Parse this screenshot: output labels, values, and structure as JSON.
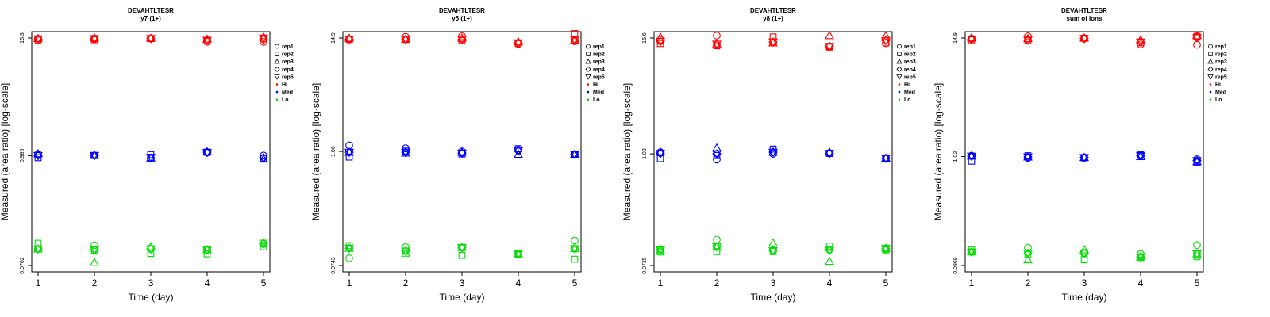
{
  "chart_data": [
    {
      "type": "scatter",
      "title": "DEVAHTLTESR",
      "subtitle": "y7 (1+)",
      "xlabel": "Time (day)",
      "ylabel": "Measured (area ratio) [log-scale]",
      "x_ticks": [
        "1",
        "2",
        "3",
        "4",
        "5"
      ],
      "y_ticks": [
        {
          "value": 0.0762,
          "label": "0.0762"
        },
        {
          "value": 0.986,
          "label": "0.986"
        },
        {
          "value": 15.3,
          "label": "15.3"
        }
      ],
      "ylim": [
        0.0762,
        15.3
      ],
      "ylog": true,
      "series": [
        {
          "group": "Hi",
          "rep": "rep1",
          "values": [
            15.0,
            15.0,
            15.1,
            14.0,
            14.0
          ]
        },
        {
          "group": "Hi",
          "rep": "rep2",
          "values": [
            14.6,
            14.7,
            15.1,
            14.4,
            15.0
          ]
        },
        {
          "group": "Hi",
          "rep": "rep3",
          "values": [
            15.1,
            15.3,
            15.2,
            14.9,
            15.6
          ]
        },
        {
          "group": "Hi",
          "rep": "rep4",
          "values": [
            15.0,
            15.0,
            15.1,
            14.6,
            14.8
          ]
        },
        {
          "group": "Hi",
          "rep": "rep5",
          "values": [
            15.0,
            15.1,
            15.1,
            14.5,
            15.3
          ]
        },
        {
          "group": "Med",
          "rep": "rep1",
          "values": [
            1.02,
            0.99,
            0.93,
            1.06,
            0.99
          ]
        },
        {
          "group": "Med",
          "rep": "rep2",
          "values": [
            0.94,
            0.99,
            1.01,
            1.07,
            0.93
          ]
        },
        {
          "group": "Med",
          "rep": "rep3",
          "values": [
            1.03,
            0.99,
            0.93,
            1.08,
            0.91
          ]
        },
        {
          "group": "Med",
          "rep": "rep4",
          "values": [
            0.99,
            0.99,
            0.93,
            1.07,
            0.94
          ]
        },
        {
          "group": "Med",
          "rep": "rep5",
          "values": [
            0.99,
            0.99,
            0.95,
            1.06,
            0.93
          ]
        },
        {
          "group": "Lo",
          "rep": "rep1",
          "values": [
            0.112,
            0.122,
            0.112,
            0.111,
            0.125
          ]
        },
        {
          "group": "Lo",
          "rep": "rep2",
          "values": [
            0.128,
            0.109,
            0.101,
            0.1,
            0.118
          ]
        },
        {
          "group": "Lo",
          "rep": "rep3",
          "values": [
            0.112,
            0.082,
            0.118,
            0.11,
            0.13
          ]
        },
        {
          "group": "Lo",
          "rep": "rep4",
          "values": [
            0.112,
            0.11,
            0.112,
            0.109,
            0.127
          ]
        },
        {
          "group": "Lo",
          "rep": "rep5",
          "values": [
            0.112,
            0.11,
            0.112,
            0.109,
            0.128
          ]
        }
      ]
    },
    {
      "type": "scatter",
      "title": "DEVAHTLTESR",
      "subtitle": "y5 (1+)",
      "xlabel": "Time (day)",
      "ylabel": "Measured (area ratio) [log-scale]",
      "x_ticks": [
        "1",
        "2",
        "3",
        "4",
        "5"
      ],
      "y_ticks": [
        {
          "value": 0.0743,
          "label": "0.0743"
        },
        {
          "value": 1.06,
          "label": "1.06"
        },
        {
          "value": 14.9,
          "label": "14.9"
        }
      ],
      "ylim": [
        0.0743,
        14.9
      ],
      "ylog": true,
      "series": [
        {
          "group": "Hi",
          "rep": "rep1",
          "values": [
            14.5,
            15.3,
            15.5,
            13.0,
            13.8
          ]
        },
        {
          "group": "Hi",
          "rep": "rep2",
          "values": [
            14.4,
            14.4,
            14.0,
            13.1,
            16.5
          ]
        },
        {
          "group": "Hi",
          "rep": "rep3",
          "values": [
            14.8,
            14.5,
            14.8,
            13.6,
            14.2
          ]
        },
        {
          "group": "Hi",
          "rep": "rep4",
          "values": [
            14.5,
            14.4,
            14.4,
            13.3,
            14.2
          ]
        },
        {
          "group": "Hi",
          "rep": "rep5",
          "values": [
            14.5,
            14.4,
            14.4,
            13.3,
            14.2
          ]
        },
        {
          "group": "Med",
          "rep": "rep1",
          "values": [
            1.22,
            1.14,
            1.06,
            1.1,
            0.99
          ]
        },
        {
          "group": "Med",
          "rep": "rep2",
          "values": [
            0.93,
            1.07,
            1.0,
            1.13,
            0.99
          ]
        },
        {
          "group": "Med",
          "rep": "rep3",
          "values": [
            1.04,
            1.02,
            1.04,
            0.99,
            0.99
          ]
        },
        {
          "group": "Med",
          "rep": "rep4",
          "values": [
            1.04,
            1.04,
            1.02,
            1.07,
            0.99
          ]
        },
        {
          "group": "Med",
          "rep": "rep5",
          "values": [
            1.04,
            1.04,
            1.02,
            1.07,
            0.99
          ]
        },
        {
          "group": "Lo",
          "rep": "rep1",
          "values": [
            0.088,
            0.114,
            0.113,
            0.097,
            0.133
          ]
        },
        {
          "group": "Lo",
          "rep": "rep2",
          "values": [
            0.118,
            0.104,
            0.094,
            0.098,
            0.086
          ]
        },
        {
          "group": "Lo",
          "rep": "rep3",
          "values": [
            0.111,
            0.099,
            0.113,
            0.097,
            0.11
          ]
        },
        {
          "group": "Lo",
          "rep": "rep4",
          "values": [
            0.111,
            0.104,
            0.113,
            0.097,
            0.11
          ]
        },
        {
          "group": "Lo",
          "rep": "rep5",
          "values": [
            0.111,
            0.104,
            0.113,
            0.097,
            0.11
          ]
        }
      ]
    },
    {
      "type": "scatter",
      "title": "DEVAHTLTESR",
      "subtitle": "y8 (1+)",
      "xlabel": "Time (day)",
      "ylabel": "Measured (area ratio) [log-scale]",
      "x_ticks": [
        "1",
        "2",
        "3",
        "4",
        "5"
      ],
      "y_ticks": [
        {
          "value": 0.0735,
          "label": "0.0735"
        },
        {
          "value": 1.02,
          "label": "1.02"
        },
        {
          "value": 15.6,
          "label": "15.6"
        }
      ],
      "ylim": [
        0.0735,
        15.6
      ],
      "ylog": true,
      "series": [
        {
          "group": "Hi",
          "rep": "rep1",
          "values": [
            15.0,
            16.5,
            14.0,
            12.7,
            13.8
          ]
        },
        {
          "group": "Hi",
          "rep": "rep2",
          "values": [
            13.7,
            13.0,
            16.0,
            12.6,
            13.9
          ]
        },
        {
          "group": "Hi",
          "rep": "rep3",
          "values": [
            15.9,
            13.6,
            13.9,
            16.5,
            16.4
          ]
        },
        {
          "group": "Hi",
          "rep": "rep4",
          "values": [
            14.4,
            13.5,
            14.2,
            12.8,
            14.7
          ]
        },
        {
          "group": "Hi",
          "rep": "rep5",
          "values": [
            14.4,
            13.5,
            14.2,
            12.8,
            14.7
          ]
        },
        {
          "group": "Med",
          "rep": "rep1",
          "values": [
            1.06,
            0.89,
            1.02,
            1.03,
            0.92
          ]
        },
        {
          "group": "Med",
          "rep": "rep2",
          "values": [
            0.91,
            0.98,
            1.14,
            1.03,
            0.92
          ]
        },
        {
          "group": "Med",
          "rep": "rep3",
          "values": [
            1.06,
            1.17,
            1.06,
            1.06,
            0.92
          ]
        },
        {
          "group": "Med",
          "rep": "rep4",
          "values": [
            1.03,
            1.02,
            1.06,
            1.03,
            0.92
          ]
        },
        {
          "group": "Med",
          "rep": "rep5",
          "values": [
            1.03,
            1.02,
            1.06,
            1.03,
            0.92
          ]
        },
        {
          "group": "Lo",
          "rep": "rep1",
          "values": [
            0.108,
            0.135,
            0.106,
            0.107,
            0.108
          ]
        },
        {
          "group": "Lo",
          "rep": "rep2",
          "values": [
            0.101,
            0.102,
            0.102,
            0.116,
            0.106
          ]
        },
        {
          "group": "Lo",
          "rep": "rep3",
          "values": [
            0.106,
            0.114,
            0.125,
            0.081,
            0.11
          ]
        },
        {
          "group": "Lo",
          "rep": "rep4",
          "values": [
            0.106,
            0.114,
            0.104,
            0.105,
            0.11
          ]
        },
        {
          "group": "Lo",
          "rep": "rep5",
          "values": [
            0.106,
            0.114,
            0.104,
            0.105,
            0.11
          ]
        }
      ]
    },
    {
      "type": "scatter",
      "title": "DEVAHTLTESR",
      "subtitle": "sum of Ions",
      "xlabel": "Time (day)",
      "ylabel": "Measured (area ratio) [log-scale]",
      "x_ticks": [
        "1",
        "2",
        "3",
        "4",
        "5"
      ],
      "y_ticks": [
        {
          "value": 0.0869,
          "label": "0.0869"
        },
        {
          "value": 1.02,
          "label": "1.02"
        },
        {
          "value": 14.9,
          "label": "14.9"
        }
      ],
      "ylim": [
        0.0869,
        14.9
      ],
      "ylog": true,
      "series": [
        {
          "group": "Hi",
          "rep": "rep1",
          "values": [
            14.7,
            15.5,
            14.8,
            12.9,
            12.8
          ]
        },
        {
          "group": "Hi",
          "rep": "rep2",
          "values": [
            14.3,
            14.0,
            14.8,
            13.4,
            15.5
          ]
        },
        {
          "group": "Hi",
          "rep": "rep3",
          "values": [
            14.9,
            14.7,
            14.9,
            14.3,
            15.7
          ]
        },
        {
          "group": "Hi",
          "rep": "rep4",
          "values": [
            14.5,
            14.2,
            14.7,
            13.6,
            15.0
          ]
        },
        {
          "group": "Hi",
          "rep": "rep5",
          "values": [
            14.5,
            14.2,
            14.7,
            13.6,
            15.0
          ]
        },
        {
          "group": "Med",
          "rep": "rep1",
          "values": [
            1.04,
            0.99,
            1.0,
            1.04,
            0.96
          ]
        },
        {
          "group": "Med",
          "rep": "rep2",
          "values": [
            0.92,
            1.04,
            0.99,
            1.06,
            0.9
          ]
        },
        {
          "group": "Med",
          "rep": "rep3",
          "values": [
            1.03,
            1.01,
            1.0,
            1.02,
            0.91
          ]
        },
        {
          "group": "Med",
          "rep": "rep4",
          "values": [
            1.03,
            1.01,
            1.0,
            1.04,
            0.93
          ]
        },
        {
          "group": "Med",
          "rep": "rep5",
          "values": [
            1.03,
            1.01,
            1.0,
            1.04,
            0.93
          ]
        },
        {
          "group": "Lo",
          "rep": "rep1",
          "values": [
            0.118,
            0.13,
            0.114,
            0.113,
            0.138
          ]
        },
        {
          "group": "Lo",
          "rep": "rep2",
          "values": [
            0.124,
            0.111,
            0.099,
            0.104,
            0.106
          ]
        },
        {
          "group": "Lo",
          "rep": "rep3",
          "values": [
            0.118,
            0.099,
            0.124,
            0.106,
            0.113
          ]
        },
        {
          "group": "Lo",
          "rep": "rep4",
          "values": [
            0.118,
            0.115,
            0.115,
            0.106,
            0.113
          ]
        },
        {
          "group": "Lo",
          "rep": "rep5",
          "values": [
            0.118,
            0.115,
            0.115,
            0.106,
            0.113
          ]
        }
      ]
    }
  ],
  "legend": {
    "entries": [
      {
        "label": "rep1",
        "marker": "circle",
        "color": "#000000"
      },
      {
        "label": "rep2",
        "marker": "square",
        "color": "#000000"
      },
      {
        "label": "rep3",
        "marker": "triangle-up",
        "color": "#000000"
      },
      {
        "label": "rep4",
        "marker": "diamond",
        "color": "#000000"
      },
      {
        "label": "rep5",
        "marker": "triangle-down",
        "color": "#000000"
      },
      {
        "label": "Hi",
        "marker": "dot",
        "color": "#ff0000"
      },
      {
        "label": "Med",
        "marker": "dot",
        "color": "#0000ff"
      },
      {
        "label": "Lo",
        "marker": "dot",
        "color": "#00dd00"
      }
    ],
    "placement": "right"
  },
  "colors": {
    "Hi": "#ff0000",
    "Med": "#0000ff",
    "Lo": "#00dd00"
  },
  "markers": {
    "rep1": "circle",
    "rep2": "square",
    "rep3": "triangle-up",
    "rep4": "diamond",
    "rep5": "triangle-down"
  }
}
